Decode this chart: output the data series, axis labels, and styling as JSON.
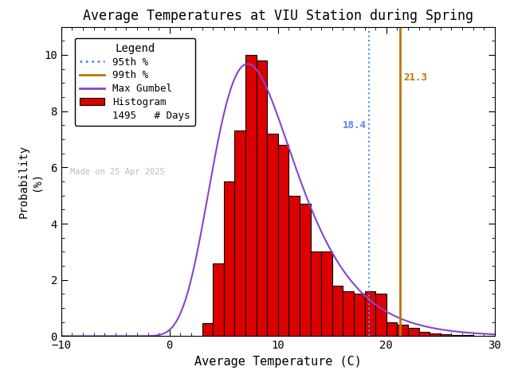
{
  "title": "Average Temperatures at VIU Station during Spring",
  "xlabel": "Average Temperature (C)",
  "ylabel1": "Probability",
  "ylabel2": "(%)",
  "xlim": [
    -10,
    30
  ],
  "ylim": [
    0,
    11
  ],
  "yticks": [
    0,
    2,
    4,
    6,
    8,
    10
  ],
  "xticks": [
    -10,
    0,
    10,
    20,
    30
  ],
  "bar_color": "#dd0000",
  "bar_edgecolor": "#000000",
  "gumbel_color": "#8844cc",
  "p95_color": "#5588ff",
  "p99_color": "#bb7700",
  "p95_value": 18.4,
  "p99_value": 21.3,
  "n_days": 1495,
  "made_on": "Made on 25 Apr 2025",
  "made_on_color": "#bbbbbb",
  "background_color": "#ffffff",
  "bar_lefts": [
    3,
    4,
    5,
    6,
    7,
    8,
    9,
    10,
    11,
    12,
    13,
    14,
    15,
    16,
    17,
    18,
    19,
    20,
    21,
    22,
    23,
    24,
    25,
    26,
    27
  ],
  "bar_heights": [
    0.47,
    2.6,
    5.5,
    7.3,
    10.0,
    9.8,
    7.2,
    6.8,
    5.0,
    4.7,
    3.0,
    3.0,
    1.8,
    1.6,
    1.5,
    1.6,
    1.5,
    0.5,
    0.4,
    0.3,
    0.15,
    0.1,
    0.08,
    0.05,
    0.03
  ],
  "gumbel_mu": 7.2,
  "gumbel_beta": 3.8,
  "gumbel_scale": 100.0
}
